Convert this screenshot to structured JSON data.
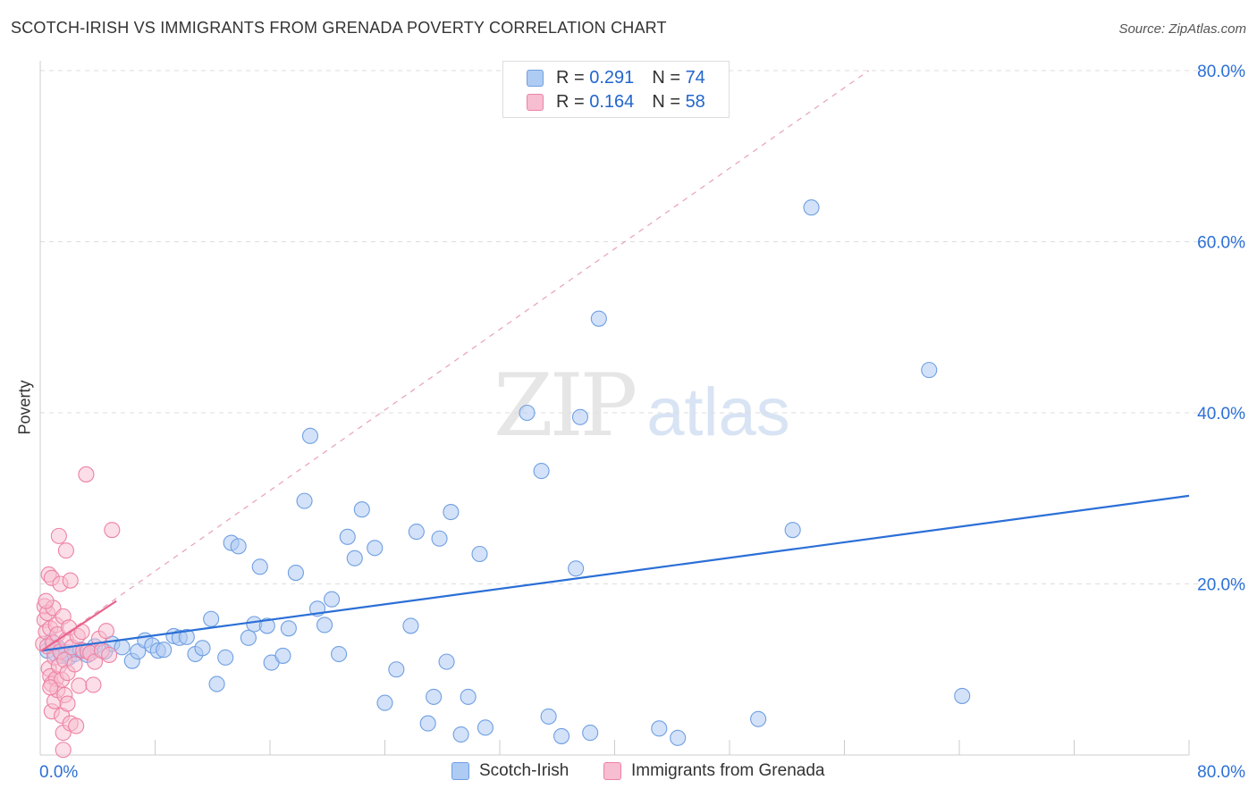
{
  "chart_data": {
    "type": "scatter",
    "title": "SCOTCH-IRISH VS IMMIGRANTS FROM GRENADA POVERTY CORRELATION CHART",
    "source": "Source: ZipAtlas.com",
    "ylabel": "Poverty",
    "xlabel": "",
    "xlim": [
      0,
      80
    ],
    "ylim": [
      0,
      80
    ],
    "x_tick_labels": [
      "0.0%",
      "80.0%"
    ],
    "y_tick_labels": [
      "20.0%",
      "40.0%",
      "60.0%",
      "80.0%"
    ],
    "y_ticks": [
      20,
      40,
      60,
      80
    ],
    "grid": "horizontal dashed",
    "watermark": {
      "zip": "ZIP",
      "atlas": "atlas"
    },
    "legend": [
      {
        "r_label": "R =",
        "r_value": "0.291",
        "n_label": "N =",
        "n_value": "74"
      },
      {
        "r_label": "R =",
        "r_value": "0.164",
        "n_label": "N =",
        "n_value": "58"
      }
    ],
    "series": [
      {
        "name": "Scotch-Irish",
        "color": "#6f9fe3",
        "fill": "#aecbf3",
        "line_color": "#2b6fd6",
        "trend": {
          "x": [
            0.1,
            80
          ],
          "y": [
            12.2,
            30.3
          ]
        },
        "points": [
          [
            0.5,
            12.2
          ],
          [
            0.8,
            13.3
          ],
          [
            1.0,
            11.9
          ],
          [
            1.2,
            12.6
          ],
          [
            1.5,
            11.6
          ],
          [
            1.8,
            12.0
          ],
          [
            2.0,
            11.4
          ],
          [
            2.4,
            11.8
          ],
          [
            2.8,
            12.3
          ],
          [
            3.3,
            11.7
          ],
          [
            3.8,
            12.7
          ],
          [
            4.5,
            12.1
          ],
          [
            5.0,
            13.0
          ],
          [
            5.7,
            12.6
          ],
          [
            6.4,
            11.0
          ],
          [
            6.8,
            12.1
          ],
          [
            7.3,
            13.4
          ],
          [
            7.8,
            12.8
          ],
          [
            8.2,
            12.2
          ],
          [
            8.6,
            12.3
          ],
          [
            9.3,
            13.9
          ],
          [
            9.7,
            13.7
          ],
          [
            10.2,
            13.8
          ],
          [
            10.8,
            11.8
          ],
          [
            11.3,
            12.5
          ],
          [
            11.9,
            15.9
          ],
          [
            12.3,
            8.3
          ],
          [
            12.9,
            11.4
          ],
          [
            13.3,
            24.8
          ],
          [
            13.8,
            24.4
          ],
          [
            14.5,
            13.7
          ],
          [
            14.9,
            15.3
          ],
          [
            15.3,
            22.0
          ],
          [
            15.8,
            15.1
          ],
          [
            16.1,
            10.8
          ],
          [
            16.9,
            11.6
          ],
          [
            17.3,
            14.8
          ],
          [
            17.8,
            21.3
          ],
          [
            18.4,
            29.7
          ],
          [
            18.8,
            37.3
          ],
          [
            19.3,
            17.1
          ],
          [
            19.8,
            15.2
          ],
          [
            20.3,
            18.2
          ],
          [
            20.8,
            11.8
          ],
          [
            21.4,
            25.5
          ],
          [
            21.9,
            23.0
          ],
          [
            22.4,
            28.7
          ],
          [
            23.3,
            24.2
          ],
          [
            24.0,
            6.1
          ],
          [
            24.8,
            10.0
          ],
          [
            25.8,
            15.1
          ],
          [
            26.2,
            26.1
          ],
          [
            27.0,
            3.7
          ],
          [
            27.4,
            6.8
          ],
          [
            27.8,
            25.3
          ],
          [
            28.3,
            10.9
          ],
          [
            28.6,
            28.4
          ],
          [
            29.3,
            2.4
          ],
          [
            29.8,
            6.8
          ],
          [
            30.6,
            23.5
          ],
          [
            31.0,
            3.2
          ],
          [
            33.9,
            40.0
          ],
          [
            34.9,
            33.2
          ],
          [
            35.4,
            4.5
          ],
          [
            36.3,
            2.2
          ],
          [
            37.3,
            21.8
          ],
          [
            37.6,
            39.5
          ],
          [
            38.3,
            2.6
          ],
          [
            38.9,
            51.0
          ],
          [
            43.1,
            3.1
          ],
          [
            44.4,
            2.0
          ],
          [
            50.0,
            4.2
          ],
          [
            52.4,
            26.3
          ],
          [
            53.7,
            64.0
          ],
          [
            61.9,
            45.0
          ],
          [
            64.2,
            6.9
          ]
        ]
      },
      {
        "name": "Immigrants from Grenada",
        "color": "#ee82a4",
        "fill": "#f7bdd0",
        "line_color": "#e8648c",
        "trend": {
          "x": [
            0.1,
            5.3
          ],
          "y": [
            12.2,
            18.0
          ]
        },
        "trend_ext": {
          "x": [
            0.1,
            57.7
          ],
          "y": [
            12.2,
            80
          ]
        },
        "points": [
          [
            0.2,
            13.0
          ],
          [
            0.3,
            15.8
          ],
          [
            0.3,
            17.4
          ],
          [
            0.4,
            14.4
          ],
          [
            0.5,
            12.7
          ],
          [
            0.5,
            16.6
          ],
          [
            0.6,
            10.1
          ],
          [
            0.6,
            21.1
          ],
          [
            0.7,
            9.2
          ],
          [
            0.7,
            14.8
          ],
          [
            0.8,
            5.1
          ],
          [
            0.8,
            8.3
          ],
          [
            0.8,
            20.7
          ],
          [
            0.9,
            13.1
          ],
          [
            0.9,
            17.2
          ],
          [
            1.0,
            6.3
          ],
          [
            1.0,
            11.4
          ],
          [
            1.1,
            8.9
          ],
          [
            1.1,
            15.2
          ],
          [
            1.2,
            7.6
          ],
          [
            1.2,
            14.1
          ],
          [
            1.3,
            25.6
          ],
          [
            1.3,
            10.4
          ],
          [
            1.4,
            12.1
          ],
          [
            1.4,
            20.0
          ],
          [
            1.5,
            4.6
          ],
          [
            1.5,
            8.8
          ],
          [
            1.6,
            16.2
          ],
          [
            1.6,
            2.6
          ],
          [
            1.7,
            11.1
          ],
          [
            1.7,
            7.0
          ],
          [
            1.8,
            23.9
          ],
          [
            1.8,
            13.4
          ],
          [
            1.9,
            6.0
          ],
          [
            1.9,
            9.6
          ],
          [
            2.0,
            14.9
          ],
          [
            2.1,
            3.7
          ],
          [
            2.1,
            20.4
          ],
          [
            2.2,
            12.6
          ],
          [
            2.4,
            10.6
          ],
          [
            2.5,
            3.4
          ],
          [
            2.6,
            13.9
          ],
          [
            2.7,
            8.1
          ],
          [
            2.9,
            14.4
          ],
          [
            3.0,
            12.2
          ],
          [
            3.2,
            32.8
          ],
          [
            3.3,
            12.1
          ],
          [
            3.5,
            11.9
          ],
          [
            3.7,
            8.2
          ],
          [
            3.8,
            10.9
          ],
          [
            4.1,
            13.6
          ],
          [
            4.3,
            12.2
          ],
          [
            4.6,
            14.5
          ],
          [
            4.8,
            11.7
          ],
          [
            5.0,
            26.3
          ],
          [
            1.6,
            0.6
          ],
          [
            0.4,
            18.0
          ],
          [
            0.7,
            7.9
          ]
        ]
      }
    ]
  },
  "bottom_legend": [
    {
      "label": "Scotch-Irish"
    },
    {
      "label": "Immigrants from Grenada"
    }
  ]
}
